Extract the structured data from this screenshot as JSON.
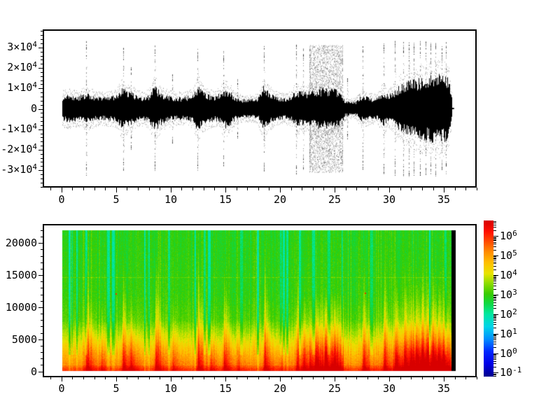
{
  "figure": {
    "background": "#ffffff",
    "frame_color": "#000000",
    "text_color": "#000000"
  },
  "chart_data": [
    {
      "id": "waveform",
      "type": "line",
      "subtype": "audio-waveform",
      "title": "",
      "xlabel": "",
      "ylabel": "",
      "grid": false,
      "line_color": "#000000",
      "xlim": [
        -1.65,
        38.0
      ],
      "ylim": [
        -38500,
        38500
      ],
      "x_major_ticks": [
        0,
        5,
        10,
        15,
        20,
        25,
        30,
        35
      ],
      "x_major_labels": [
        "0",
        "5",
        "10",
        "15",
        "20",
        "25",
        "30",
        "35"
      ],
      "x_minor_step": 1,
      "y_major_ticks": [
        30000,
        20000,
        10000,
        0,
        -10000,
        -20000,
        -30000
      ],
      "y_major_labels": [
        {
          "text": "3×10",
          "sup": "4"
        },
        {
          "text": "2×10",
          "sup": "4"
        },
        {
          "text": "1×10",
          "sup": "4"
        },
        {
          "text": "0",
          "sup": ""
        },
        {
          "text": "-1×10",
          "sup": "4"
        },
        {
          "text": "-2×10",
          "sup": "4"
        },
        {
          "text": "-3×10",
          "sup": "4"
        }
      ],
      "y_minor_step": 2000,
      "signal": {
        "duration": 35.85,
        "envelope_t0": 0,
        "envelope_dt": 0.5,
        "envelope_abs": [
          4800,
          5200,
          5000,
          4600,
          5600,
          5600,
          4800,
          4400,
          4500,
          4700,
          5200,
          7800,
          6800,
          5800,
          4800,
          4600,
          5200,
          8800,
          6500,
          5200,
          4700,
          4500,
          4300,
          4600,
          5200,
          8800,
          6200,
          5200,
          4700,
          5800,
          7800,
          6200,
          4300,
          3600,
          3500,
          3600,
          4000,
          8500,
          6200,
          4800,
          4200,
          4100,
          4600,
          6800,
          6500,
          6200,
          7000,
          7500,
          7800,
          7800,
          7500,
          7000,
          3200,
          2600,
          2800,
          5000,
          4500,
          4000,
          4200,
          7000,
          5200,
          6800,
          8800,
          9800,
          10800,
          11000,
          11800,
          12000,
          12800,
          13000,
          12800,
          12200,
          0
        ],
        "spikes": [
          {
            "t": 2.2,
            "a": 33500
          },
          {
            "t": 5.6,
            "a": 30500
          },
          {
            "t": 6.3,
            "a": 21000
          },
          {
            "t": 8.55,
            "a": 31500
          },
          {
            "t": 10.15,
            "a": 17000
          },
          {
            "t": 12.45,
            "a": 30500
          },
          {
            "t": 14.85,
            "a": 28500
          },
          {
            "t": 16.1,
            "a": 14500
          },
          {
            "t": 18.55,
            "a": 31000
          },
          {
            "t": 21.55,
            "a": 32500
          },
          {
            "t": 22.15,
            "a": 30000
          },
          {
            "t": 26.2,
            "a": 15000
          },
          {
            "t": 27.65,
            "a": 31500
          },
          {
            "t": 29.55,
            "a": 32500
          },
          {
            "t": 30.6,
            "a": 33500
          },
          {
            "t": 31.35,
            "a": 33500
          },
          {
            "t": 31.9,
            "a": 33500
          },
          {
            "t": 32.35,
            "a": 33000
          },
          {
            "t": 32.9,
            "a": 33500
          },
          {
            "t": 33.4,
            "a": 33500
          },
          {
            "t": 33.9,
            "a": 32500
          },
          {
            "t": 34.35,
            "a": 33500
          },
          {
            "t": 34.9,
            "a": 31000
          },
          {
            "t": 35.3,
            "a": 33000
          }
        ],
        "noise_burst": {
          "t_start": 22.75,
          "t_end": 25.8,
          "amplitude": 31500
        },
        "end_marker_level": 0
      }
    },
    {
      "id": "spectrogram",
      "type": "heatmap",
      "subtype": "spectrogram",
      "title": "",
      "xlabel": "",
      "ylabel": "",
      "colormap": "jet",
      "value_scale": "log10",
      "value_range_log10": [
        -1.2,
        6.8
      ],
      "xlim": [
        -1.65,
        38.0
      ],
      "ylim": [
        -800,
        22850
      ],
      "x_major_ticks": [
        0,
        5,
        10,
        15,
        20,
        25,
        30,
        35
      ],
      "x_major_labels": [
        "0",
        "5",
        "10",
        "15",
        "20",
        "25",
        "30",
        "35"
      ],
      "x_minor_step": 1,
      "y_major_ticks": [
        0,
        5000,
        10000,
        15000,
        20000
      ],
      "y_major_labels": [
        "0",
        "5000",
        "10000",
        "15000",
        "20000"
      ],
      "y_minor_step": 1000,
      "image_extent": {
        "t": [
          0,
          36.2
        ],
        "f": [
          0,
          22100
        ]
      },
      "base_profile_log10": [
        [
          0,
          5.45
        ],
        [
          1500,
          5.0
        ],
        [
          3000,
          4.6
        ],
        [
          5000,
          4.0
        ],
        [
          8000,
          3.2
        ],
        [
          12000,
          2.95
        ],
        [
          22100,
          2.85
        ]
      ],
      "events": [
        {
          "t": 2.2,
          "s": 1.0
        },
        {
          "t": 3.6,
          "s": 0.45
        },
        {
          "t": 5.6,
          "s": 0.95
        },
        {
          "t": 6.3,
          "s": 0.6
        },
        {
          "t": 8.6,
          "s": 1.0
        },
        {
          "t": 10.2,
          "s": 0.5
        },
        {
          "t": 12.5,
          "s": 0.95
        },
        {
          "t": 13.6,
          "s": 0.5
        },
        {
          "t": 14.9,
          "s": 0.9
        },
        {
          "t": 16.2,
          "s": 0.4
        },
        {
          "t": 18.6,
          "s": 0.95
        },
        {
          "t": 20.1,
          "s": 0.4
        },
        {
          "t": 21.6,
          "s": 0.85
        },
        {
          "t": 22.2,
          "s": 0.7
        },
        {
          "t": 23.3,
          "s": 0.6
        },
        {
          "t": 24.2,
          "s": 0.65
        },
        {
          "t": 25.0,
          "s": 0.6
        },
        {
          "t": 27.7,
          "s": 0.95
        },
        {
          "t": 29.6,
          "s": 0.9
        },
        {
          "t": 30.7,
          "s": 0.8
        },
        {
          "t": 31.5,
          "s": 0.85
        },
        {
          "t": 32.1,
          "s": 0.8
        },
        {
          "t": 32.6,
          "s": 0.8
        },
        {
          "t": 33.1,
          "s": 0.85
        },
        {
          "t": 33.6,
          "s": 0.8
        },
        {
          "t": 34.1,
          "s": 0.85
        },
        {
          "t": 34.6,
          "s": 0.75
        },
        {
          "t": 35.1,
          "s": 0.8
        }
      ],
      "noise_burst": {
        "t_start": 22.7,
        "t_end": 25.85,
        "boost_log10": 1.0,
        "f_reach": 13000
      },
      "tail_boost": {
        "t_start": 30.4,
        "t_end": 35.8,
        "boost_log10": 0.55,
        "f_reach": 17000
      },
      "hot_band": {
        "f_below": 1000,
        "boost_log10": 0.45
      },
      "faint_line": {
        "f": 14700,
        "boost_log10": 0.4
      },
      "hot_specks": [
        {
          "t": 4.9,
          "f": 12100
        },
        {
          "t": 27.8,
          "f": 12300
        }
      ],
      "end_black_strip": {
        "t_start": 35.8,
        "t_end": 36.2,
        "color": "#000000"
      }
    },
    {
      "id": "colorbar",
      "type": "colorbar",
      "orientation": "vertical",
      "colormap": "jet",
      "scale": "log",
      "range_log10": [
        -1.2,
        6.8
      ],
      "tick_values_log10": [
        6,
        5,
        4,
        3,
        2,
        1,
        0,
        -1
      ],
      "tick_labels": [
        {
          "text": "10",
          "sup": "6"
        },
        {
          "text": "10",
          "sup": "5"
        },
        {
          "text": "10",
          "sup": "4"
        },
        {
          "text": "10",
          "sup": "3"
        },
        {
          "text": "10",
          "sup": "2"
        },
        {
          "text": "10",
          "sup": "1"
        },
        {
          "text": "10",
          "sup": "0"
        },
        {
          "text": "10",
          "sup": "-1"
        }
      ]
    }
  ]
}
